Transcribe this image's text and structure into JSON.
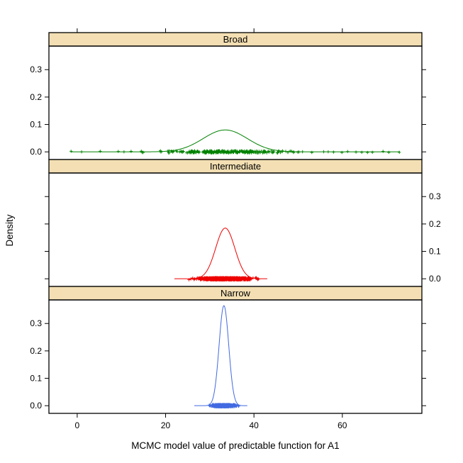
{
  "chart_data": {
    "type": "line",
    "subtype": "kernel-density-trellis",
    "title": "",
    "xlabel": "MCMC model value of predictable function for A1",
    "ylabel": "Density",
    "x_ticks": [
      0,
      20,
      40,
      60
    ],
    "x_tick_labels": [
      "0",
      "20",
      "40",
      "60"
    ],
    "y_ticks": [
      0.0,
      0.1,
      0.2,
      0.3
    ],
    "y_tick_labels": [
      "0.0",
      "0.1",
      "0.2",
      "0.3"
    ],
    "xlim": [
      -6.4,
      78.0
    ],
    "ylim": [
      -0.028,
      0.386
    ],
    "grid": false,
    "legend": "none",
    "axis_label_sides": [
      "left",
      "right",
      "left"
    ],
    "panels": [
      {
        "label": "Broad",
        "color": "#008200",
        "mean": 33.5,
        "sd": 5.0,
        "peak_density": 0.08,
        "curve_range": [
          -1.5,
          73.0
        ],
        "rug": {
          "n": 260,
          "sd": 7.5,
          "range": [
            13.0,
            52.0
          ]
        },
        "rug_outliers": [
          -1.4,
          1.0,
          5.2,
          9.3,
          10.6,
          12.2,
          45.6,
          47.2,
          48.5,
          51.0,
          53.1,
          55.8,
          56.8,
          58.0,
          59.9,
          61.2,
          63.1,
          64.4,
          65.7,
          66.8,
          69.2,
          70.5,
          72.9
        ]
      },
      {
        "label": "Intermediate",
        "color": "#EE0000",
        "mean": 33.5,
        "sd": 2.16,
        "peak_density": 0.185,
        "curve_range": [
          22.0,
          43.0
        ],
        "rug": {
          "n": 900,
          "sd": 2.6,
          "range": [
            23.0,
            42.5
          ]
        },
        "rug_outliers": []
      },
      {
        "label": "Narrow",
        "color": "#4169E1",
        "mean": 33.2,
        "sd": 1.09,
        "peak_density": 0.365,
        "curve_range": [
          26.5,
          38.5
        ],
        "rug": {
          "n": 700,
          "sd": 1.15,
          "range": [
            27.5,
            37.5
          ]
        },
        "rug_outliers": []
      }
    ],
    "colors": {
      "strip_background": "#F3DFB3",
      "panel_border": "#000000",
      "tick": "#000000",
      "text": "#000000",
      "background": "#FFFFFF"
    }
  }
}
